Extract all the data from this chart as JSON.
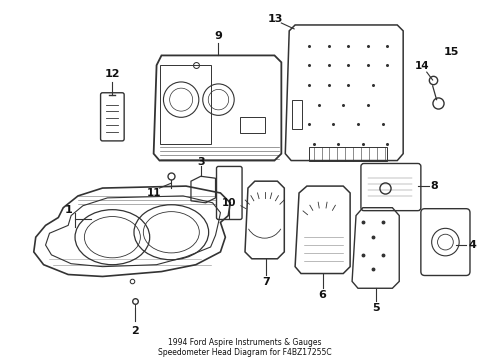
{
  "title": "1994 Ford Aspire Instruments & Gauges\nSpeedometer Head Diagram for F4BZ17255C",
  "background_color": "#ffffff",
  "line_color": "#333333",
  "text_color": "#111111",
  "figsize": [
    4.9,
    3.6
  ],
  "dpi": 100
}
